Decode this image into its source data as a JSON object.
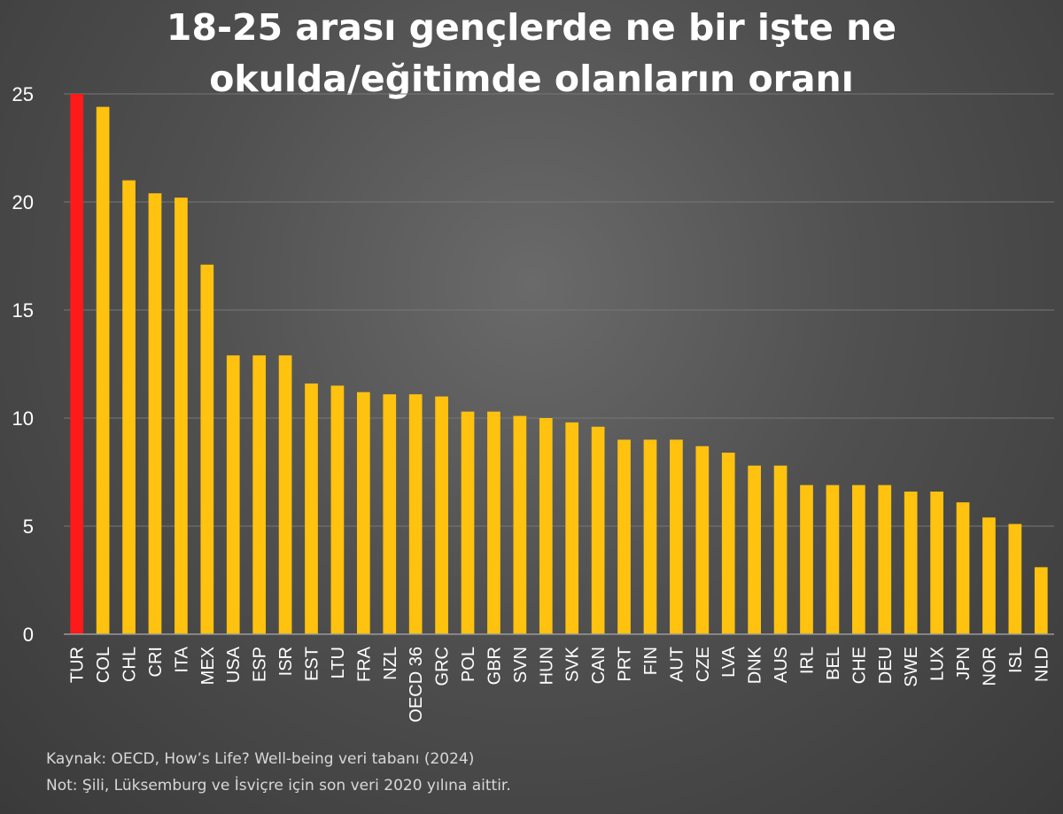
{
  "chart_data": {
    "type": "bar",
    "title_lines": [
      "18-25 arası gençlerde ne bir işte ne",
      "okulda/eğitimde olanların oranı"
    ],
    "xlabel": "",
    "ylabel": "",
    "ylim": [
      0,
      25
    ],
    "yticks": [
      0,
      5,
      10,
      15,
      20,
      25
    ],
    "grid": true,
    "legend": false,
    "categories": [
      "TUR",
      "COL",
      "CHL",
      "CRI",
      "ITA",
      "MEX",
      "USA",
      "ESP",
      "ISR",
      "EST",
      "LTU",
      "FRA",
      "NZL",
      "OECD 36",
      "GRC",
      "POL",
      "GBR",
      "SVN",
      "HUN",
      "SVK",
      "CAN",
      "PRT",
      "FIN",
      "AUT",
      "CZE",
      "LVA",
      "DNK",
      "AUS",
      "IRL",
      "BEL",
      "CHE",
      "DEU",
      "SWE",
      "LUX",
      "JPN",
      "NOR",
      "ISL",
      "NLD"
    ],
    "values": [
      25.0,
      24.4,
      21.0,
      20.4,
      20.2,
      17.1,
      12.9,
      12.9,
      12.9,
      11.6,
      11.5,
      11.2,
      11.1,
      11.1,
      11.0,
      10.3,
      10.3,
      10.1,
      10.0,
      9.8,
      9.6,
      9.0,
      9.0,
      9.0,
      8.7,
      8.4,
      7.8,
      7.8,
      6.9,
      6.9,
      6.9,
      6.9,
      6.6,
      6.6,
      6.1,
      5.4,
      5.1,
      3.1
    ],
    "highlight_category": "TUR",
    "colors": {
      "bar": "#FFC20E",
      "highlight": "#FF1A1A",
      "grid": "#777777",
      "axis": "#9a9a9a"
    }
  },
  "notes": {
    "source": "Kaynak: OECD, How’s Life? Well-being veri tabanı (2024)",
    "note": "Not: Şili, Lüksemburg ve İsviçre için son veri 2020 yılına aittir."
  }
}
